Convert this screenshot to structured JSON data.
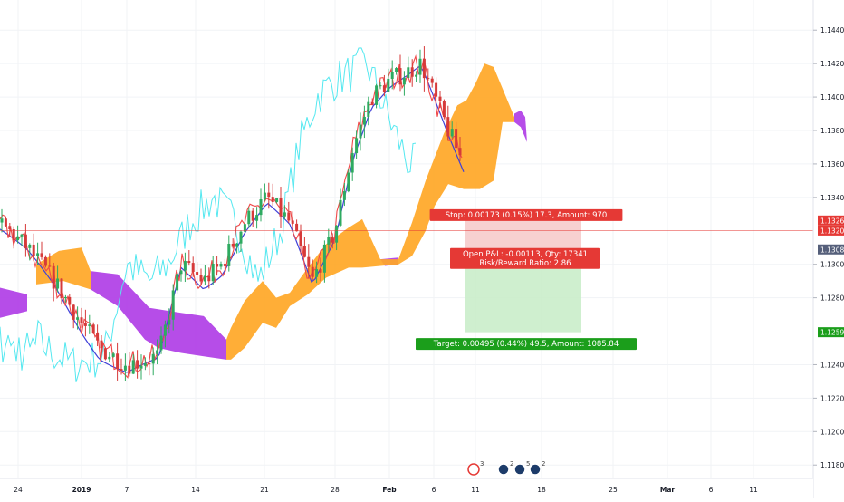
{
  "chart_data": {
    "type": "candlestick-ichimoku",
    "y_axis": {
      "range": [
        1.1172,
        1.1458
      ],
      "ticks": [
        "1.14400",
        "1.14200",
        "1.14000",
        "1.13800",
        "1.13600",
        "1.13400",
        "1.13000",
        "1.12800",
        "1.12400",
        "1.12200",
        "1.12000",
        "1.11800"
      ]
    },
    "x_axis": {
      "ticks": [
        "24",
        "2019",
        "7",
        "14",
        "21",
        "28",
        "Feb",
        "6",
        "11",
        "18",
        "25",
        "Mar",
        "6",
        "11"
      ]
    },
    "price_tags": [
      {
        "label": "1.13262",
        "value": 1.13262,
        "color": "#e53935"
      },
      {
        "label": "1.13202",
        "value": 1.13202,
        "color": "#e53935"
      },
      {
        "label": "1.13089",
        "value": 1.13089,
        "color": "#555f7a"
      },
      {
        "label": "1.12594",
        "value": 1.12594,
        "color": "#1b9e1b"
      }
    ],
    "position": {
      "entry": 1.13089,
      "stop": 1.13262,
      "target": 1.12594,
      "stop_label": "Stop: 0.00173 (0.15%) 17.3, Amount: 970",
      "open_pnl_label": "Open P&L: -0.00113, Qty: 17341",
      "risk_reward_label": "Risk/Reward Ratio: 2.86",
      "target_label": "Target: 0.00495 (0.44%) 49.5, Amount: 1085.84"
    },
    "colors": {
      "cloud_bull": "#ffa726",
      "cloud_bear": "#b03ee6",
      "conversion_line": "#f04848",
      "base_line": "#4040d8",
      "lagging_span": "#55e8f0",
      "candle_up": "#2eaa60",
      "candle_down": "#d63a3a",
      "stop_zone": "#f6c8c8",
      "target_zone": "#c7ecc7"
    },
    "event_badges": [
      "3",
      "2",
      "5",
      "2"
    ]
  }
}
